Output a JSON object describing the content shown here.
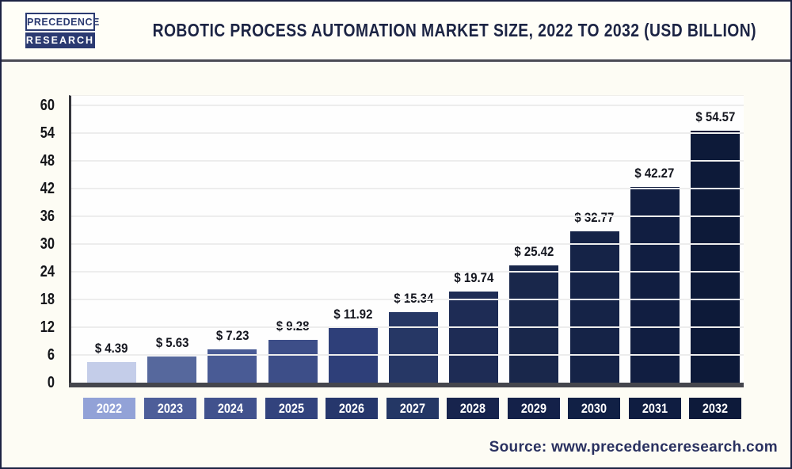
{
  "header": {
    "logo_line1": "PRECEDENCE",
    "logo_line2": "RESEARCH",
    "title": "ROBOTIC PROCESS AUTOMATION MARKET SIZE, 2022 TO 2032 (USD BILLION)"
  },
  "footer": {
    "source_text": "Source: www.precedenceresearch.com"
  },
  "colors": {
    "logo_navy": "#2b3a71",
    "title_navy": "#1c2444",
    "source_navy": "#2a3160",
    "axis_line": "#45464d",
    "gridline": "#ededed"
  },
  "chart_data": {
    "type": "bar",
    "title": "Robotic Process Automation Market Size, 2022 to 2032 (USD Billion)",
    "xlabel": "",
    "ylabel": "",
    "categories": [
      "2022",
      "2023",
      "2024",
      "2025",
      "2026",
      "2027",
      "2028",
      "2029",
      "2030",
      "2031",
      "2032"
    ],
    "values": [
      4.39,
      5.63,
      7.23,
      9.28,
      11.92,
      15.34,
      19.74,
      25.42,
      32.77,
      42.27,
      54.57
    ],
    "value_labels": [
      "$ 4.39",
      "$ 5.63",
      "$ 7.23",
      "$ 9.28",
      "$ 11.92",
      "$ 15.34",
      "$ 19.74",
      "$ 25.42",
      "$ 32.77",
      "$ 42.27",
      "$ 54.57"
    ],
    "ylim": [
      0,
      62
    ],
    "yticks": [
      0,
      6,
      12,
      18,
      24,
      30,
      36,
      42,
      48,
      54,
      60
    ],
    "grid": "horizontal",
    "legend": "none",
    "bar_colors": [
      "#c4cde9",
      "#56689d",
      "#495b95",
      "#3d4e88",
      "#2e3f79",
      "#263765",
      "#1e2c55",
      "#19274b",
      "#152347",
      "#111e41",
      "#0d1a39"
    ],
    "tick_chip_colors": [
      "#92a2d7",
      "#4d5e99",
      "#41528d",
      "#32437d",
      "#26376c",
      "#243765",
      "#17244d",
      "#142149",
      "#112045",
      "#0f1d41",
      "#0d1a3a"
    ]
  }
}
